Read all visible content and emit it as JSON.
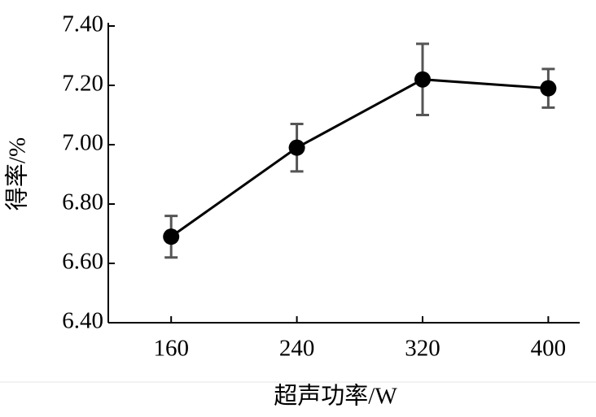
{
  "chart_data": {
    "type": "line",
    "xlabel": "超声功率/W",
    "ylabel": "得率/%",
    "x": [
      160,
      240,
      320,
      400
    ],
    "values": [
      6.69,
      6.99,
      7.22,
      7.19
    ],
    "errors": [
      0.07,
      0.08,
      0.12,
      0.065
    ],
    "color": "#000000",
    "error_color": "#555555",
    "xlim": [
      120,
      420
    ],
    "xticks": [
      160,
      240,
      320,
      400
    ],
    "ylim": [
      6.4,
      7.4
    ],
    "yticks": [
      {
        "value": 6.4,
        "label": "6.40"
      },
      {
        "value": 6.6,
        "label": "6.60"
      },
      {
        "value": 6.8,
        "label": "6.80"
      },
      {
        "value": 7.0,
        "label": "7.00"
      },
      {
        "value": 7.2,
        "label": "7.20"
      },
      {
        "value": 7.4,
        "label": "7.40"
      }
    ],
    "grid": false
  }
}
